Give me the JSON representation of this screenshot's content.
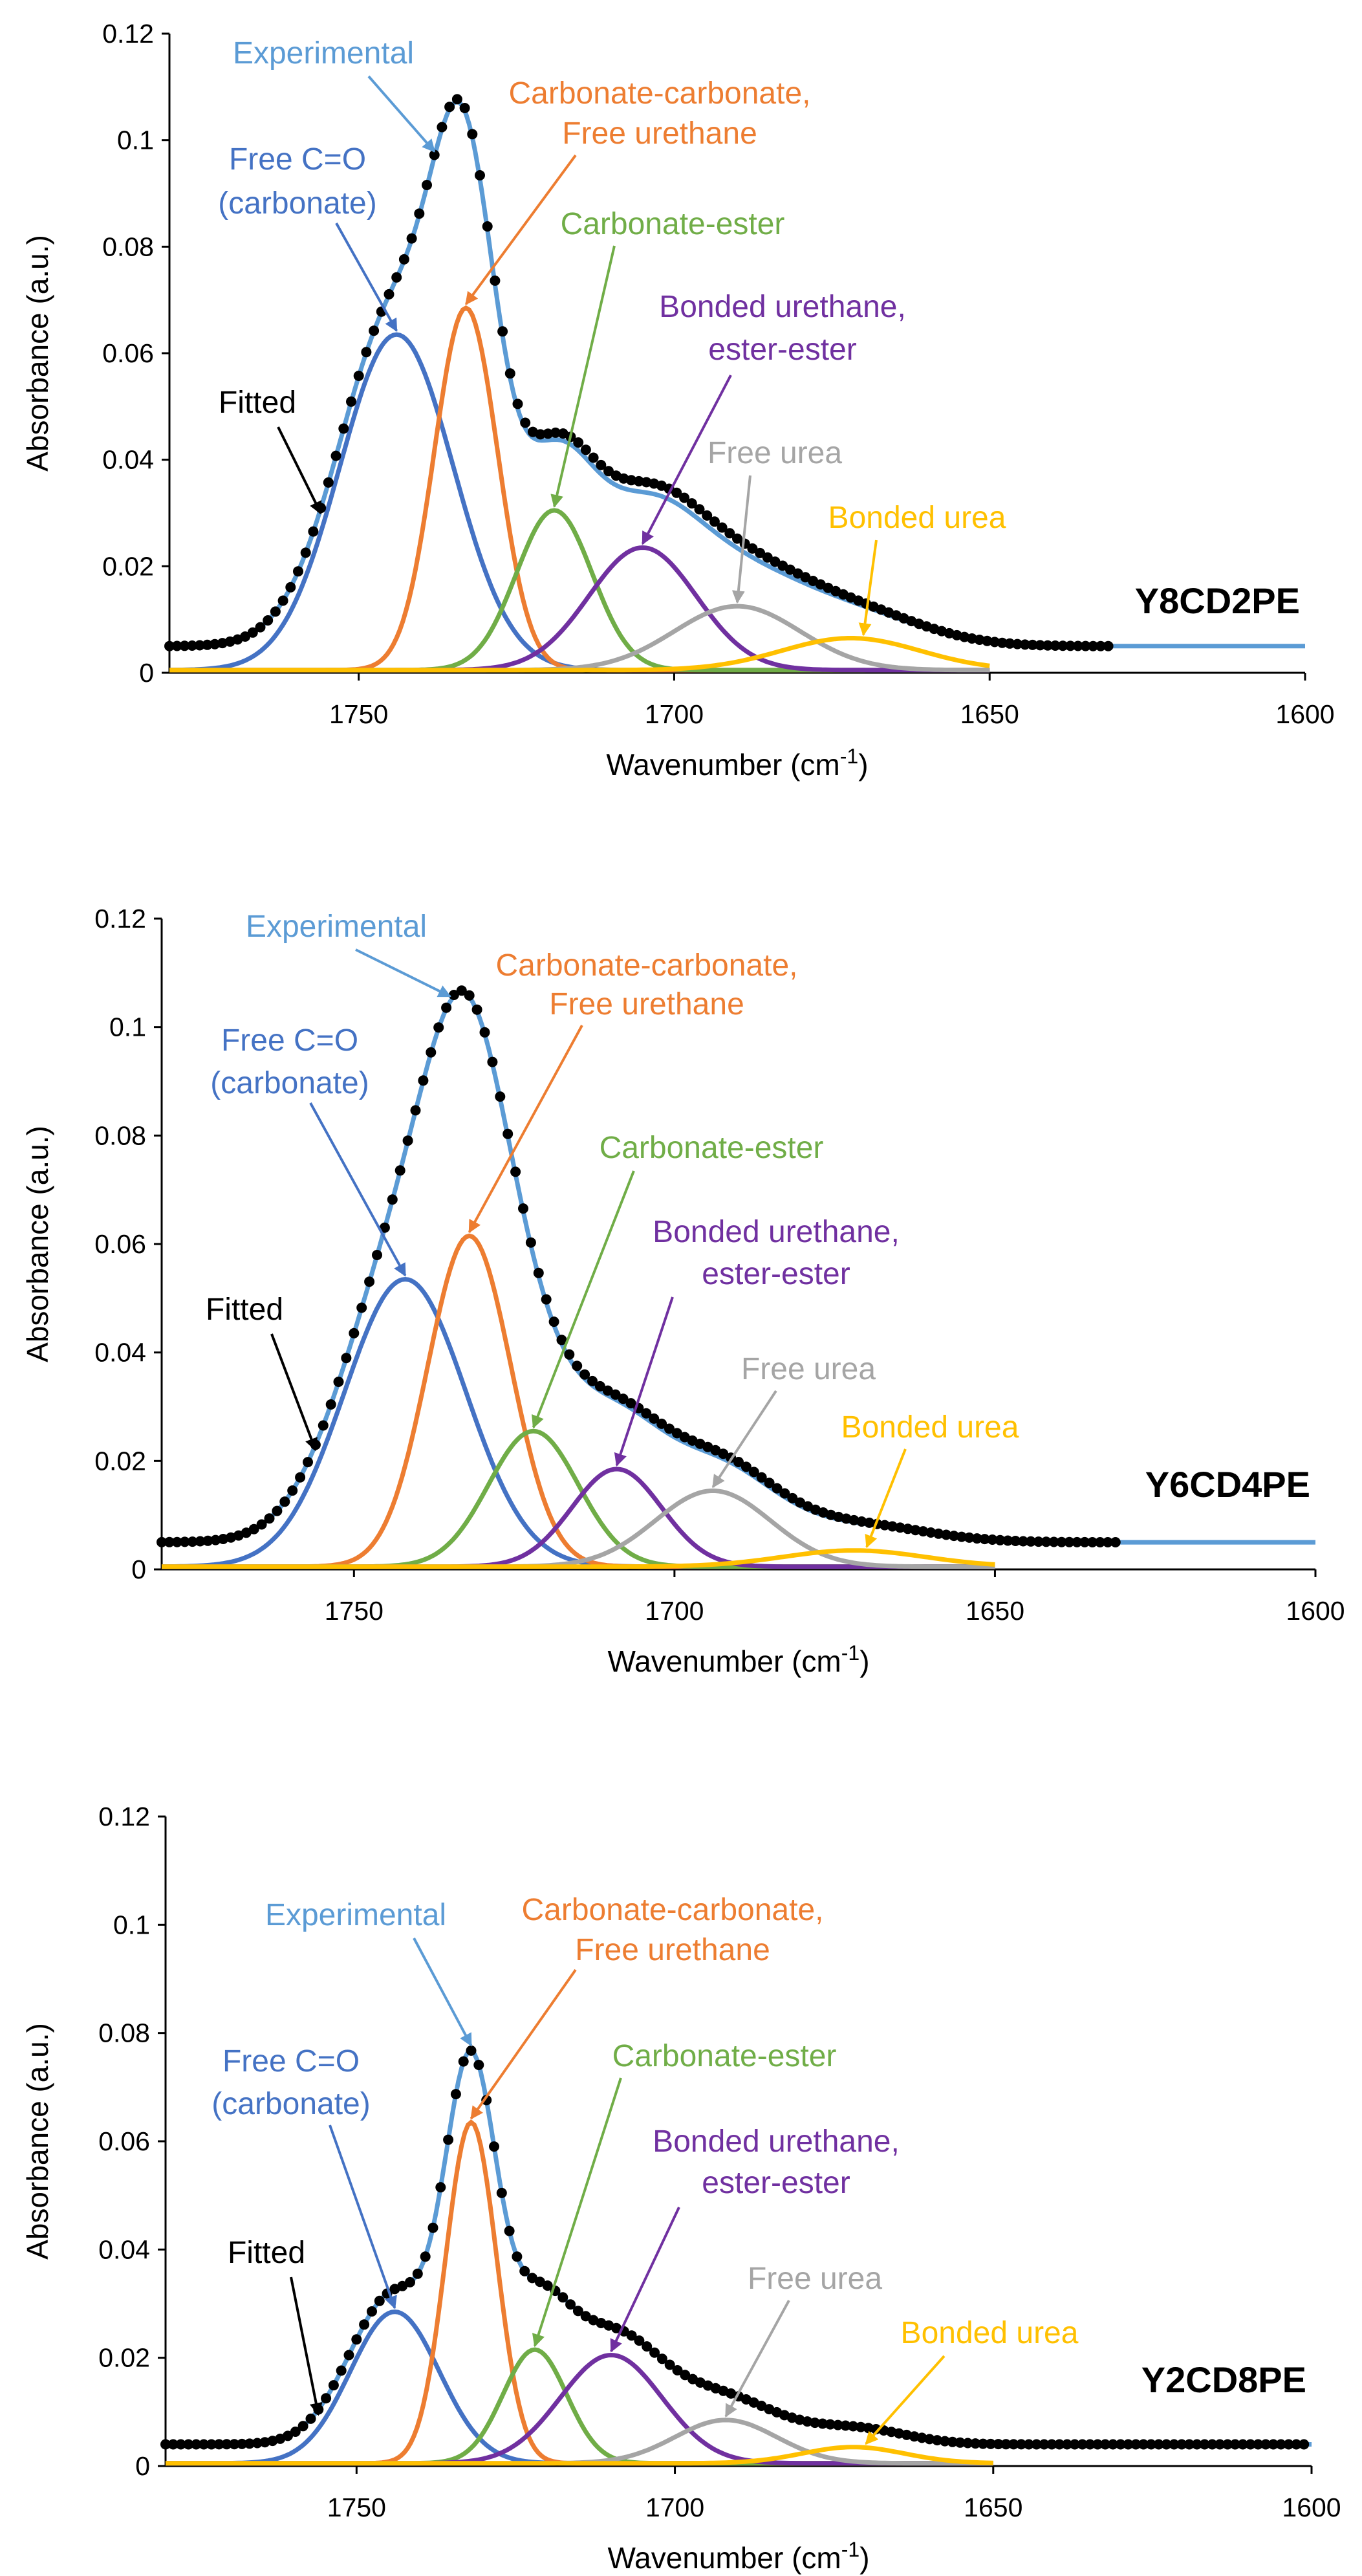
{
  "colors": {
    "experimental": "#5B9BD5",
    "free_co": "#4472C4",
    "carb_carb": "#ED7D31",
    "carb_ester": "#70AD47",
    "bonded_urethane": "#7030A0",
    "free_urea": "#A5A5A5",
    "bonded_urea": "#FFC000",
    "fitted": "#000000"
  },
  "labels": {
    "experimental": "Experimental",
    "free_co_1": "Free C=O",
    "free_co_2": "(carbonate)",
    "carb_carb_1": "Carbonate-carbonate,",
    "carb_carb_2": "Free urethane",
    "carb_ester": "Carbonate-ester",
    "bonded_urethane_1": "Bonded urethane,",
    "bonded_urethane_2": "ester-ester",
    "free_urea": "Free urea",
    "bonded_urea": "Bonded urea",
    "fitted": "Fitted"
  },
  "chart_data": [
    {
      "type": "line",
      "title": "Y8CD2PE",
      "xlabel": "Wavenumber  (cm",
      "xlabel_sup": "-1",
      "xlabel_end": ")",
      "ylabel": "Absorbance (a.u.)",
      "xlim": [
        1780,
        1600
      ],
      "ylim": [
        0,
        0.12
      ],
      "x_ticks": [
        1750,
        1700,
        1650,
        1600
      ],
      "y_ticks": [
        "0",
        "0.02",
        "0.04",
        "0.06",
        "0.08",
        "0.1",
        "0.12"
      ],
      "x_tick_labels": [
        "1750",
        "1700",
        "1650",
        "1600"
      ],
      "baseline": 0.005,
      "exp_extra": 0.002,
      "fitted_range": [
        1780,
        1630
      ],
      "peaks": [
        {
          "name": "Free C=O (carbonate)",
          "key": "free_co",
          "center": 1744,
          "height": 0.063,
          "width": 9.0
        },
        {
          "name": "Carbonate-carbonate, Free urethane",
          "key": "carb_carb",
          "center": 1733,
          "height": 0.068,
          "width": 5.0
        },
        {
          "name": "Carbonate-ester",
          "key": "carb_ester",
          "center": 1719,
          "height": 0.03,
          "width": 6.0
        },
        {
          "name": "Bonded urethane, ester-ester",
          "key": "bonded_urethane",
          "center": 1705,
          "height": 0.023,
          "width": 8.5
        },
        {
          "name": "Free urea",
          "key": "free_urea",
          "center": 1690,
          "height": 0.012,
          "width": 10.0
        },
        {
          "name": "Bonded urea",
          "key": "bonded_urea",
          "center": 1672,
          "height": 0.006,
          "width": 11.0
        }
      ]
    },
    {
      "type": "line",
      "title": "Y6CD4PE",
      "xlabel": "Wavenumber  (cm",
      "xlabel_sup": "-1",
      "xlabel_end": ")",
      "ylabel": "Absorbance (a.u.)",
      "xlim": [
        1780,
        1600
      ],
      "ylim": [
        0,
        0.12
      ],
      "x_ticks": [
        1750,
        1700,
        1650,
        1600
      ],
      "y_ticks": [
        "0",
        "0.02",
        "0.04",
        "0.06",
        "0.08",
        "0.1",
        "0.12"
      ],
      "x_tick_labels": [
        "1750",
        "1700",
        "1650",
        "1600"
      ],
      "baseline": 0.005,
      "exp_extra": 0.001,
      "fitted_range": [
        1780,
        1630
      ],
      "peaks": [
        {
          "name": "Free C=O (carbonate)",
          "key": "free_co",
          "center": 1742,
          "height": 0.053,
          "width": 9.5
        },
        {
          "name": "Carbonate-carbonate, Free urethane",
          "key": "carb_carb",
          "center": 1732,
          "height": 0.061,
          "width": 6.5
        },
        {
          "name": "Carbonate-ester",
          "key": "carb_ester",
          "center": 1722,
          "height": 0.025,
          "width": 7.0
        },
        {
          "name": "Bonded urethane, ester-ester",
          "key": "bonded_urethane",
          "center": 1709,
          "height": 0.018,
          "width": 7.0
        },
        {
          "name": "Free urea",
          "key": "free_urea",
          "center": 1694,
          "height": 0.014,
          "width": 9.0
        },
        {
          "name": "Bonded urea",
          "key": "bonded_urea",
          "center": 1672,
          "height": 0.003,
          "width": 11.0
        }
      ]
    },
    {
      "type": "line",
      "title": "Y2CD8PE",
      "xlabel": "Wavenumber  (cm",
      "xlabel_sup": "-1",
      "xlabel_end": ")",
      "ylabel": "Absorbance (a.u.)",
      "xlim": [
        1780,
        1600
      ],
      "ylim": [
        0,
        0.12
      ],
      "x_ticks": [
        1750,
        1700,
        1650,
        1600
      ],
      "y_ticks": [
        "0",
        "0.02",
        "0.04",
        "0.06",
        "0.08",
        "0.1",
        "0.12"
      ],
      "x_tick_labels": [
        "1750",
        "1700",
        "1650",
        "1600"
      ],
      "baseline": 0.004,
      "exp_extra": 0.0,
      "fitted_range": [
        1780,
        1600
      ],
      "peaks": [
        {
          "name": "Free C=O (carbonate)",
          "key": "free_co",
          "center": 1744,
          "height": 0.028,
          "width": 7.0
        },
        {
          "name": "Carbonate-carbonate, Free urethane",
          "key": "carb_carb",
          "center": 1732,
          "height": 0.063,
          "width": 4.0
        },
        {
          "name": "Carbonate-ester",
          "key": "carb_ester",
          "center": 1722,
          "height": 0.021,
          "width": 5.0
        },
        {
          "name": "Bonded urethane, ester-ester",
          "key": "bonded_urethane",
          "center": 1710,
          "height": 0.02,
          "width": 8.0
        },
        {
          "name": "Free urea",
          "key": "free_urea",
          "center": 1692,
          "height": 0.008,
          "width": 8.0
        },
        {
          "name": "Bonded urea",
          "key": "bonded_urea",
          "center": 1672,
          "height": 0.003,
          "width": 8.0
        }
      ]
    }
  ]
}
